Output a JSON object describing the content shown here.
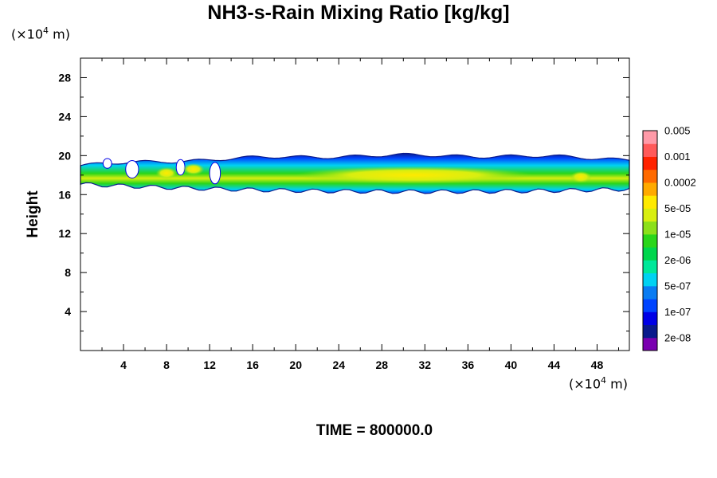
{
  "chart_data": {
    "type": "heatmap",
    "title": "NH3-s-Rain Mixing Ratio [kg/kg]",
    "ylabel": "Height",
    "x_unit": {
      "prefix": "(×10",
      "exp": "4",
      "suffix": " m)"
    },
    "y_unit": {
      "prefix": "(×10",
      "exp": "4",
      "suffix": " m)"
    },
    "xlim": [
      0,
      51
    ],
    "ylim": [
      0,
      30
    ],
    "x_ticks": [
      4,
      8,
      12,
      16,
      20,
      24,
      28,
      32,
      36,
      40,
      44,
      48
    ],
    "y_ticks": [
      4,
      8,
      12,
      16,
      20,
      24,
      28
    ],
    "colorbar": {
      "colors": [
        "#7a00b0",
        "#0a1a8c",
        "#0000e6",
        "#0044ff",
        "#0a7cf2",
        "#00d2f2",
        "#00e89a",
        "#00d64c",
        "#2ad61a",
        "#8ce01a",
        "#d8ee10",
        "#ffea00",
        "#ffaa00",
        "#ff6a00",
        "#ff2200",
        "#ff5a5a",
        "#ff9aa8"
      ],
      "labels": [
        "2e-08",
        "1e-07",
        "5e-07",
        "2e-06",
        "1e-05",
        "5e-05",
        "0.0002",
        "0.001",
        "0.005"
      ]
    },
    "layer": {
      "x_extent": [
        0,
        51
      ],
      "bottom_height": 16.5,
      "top_height": 20,
      "core_height": 18,
      "peak_value": "0.0002",
      "peak_x_range": [
        20,
        42
      ]
    },
    "footer": "TIME = 800000.0"
  }
}
